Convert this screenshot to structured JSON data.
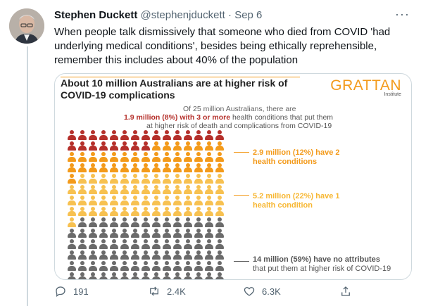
{
  "tweet": {
    "display_name": "Stephen Duckett",
    "handle": "@stephenjduckett",
    "separator": "·",
    "date": "Sep 6",
    "text": "When people talk dismissively that someone who died from COVID 'had underlying medical conditions', besides being ethically reprehensible, remember this includes about 40% of the population",
    "more_icon": "more-icon"
  },
  "card": {
    "title": "About 10 million Australians are at higher risk of COVID-19 complications",
    "logo_main": "GRATTAN",
    "logo_sub": "Institute",
    "intro": "Of 25 million Australians, there are",
    "group3_bold": "1.9 million (8%) with 3 or more",
    "group3_rest": " health conditions that put them",
    "group3_line2": "at higher risk of death and complications from COVID-19",
    "group2": "2.9 million (12%) have 2 health conditions",
    "group1": "5.2 million (22%) have 1 health condition",
    "group0_bold": "14 million (59%) have no attributes",
    "group0_rest": " that put them at higher risk of COVID-19",
    "colors": {
      "three_plus": "#b5302b",
      "two": "#f39a1a",
      "one": "#f7c151",
      "none": "#6b6b6b"
    },
    "rows": {
      "three_plus": 1.5,
      "two": 2.5,
      "one": 4,
      "none": 7
    }
  },
  "actions": {
    "reply_count": "191",
    "retweet_count": "2.4K",
    "like_count": "6.3K"
  }
}
